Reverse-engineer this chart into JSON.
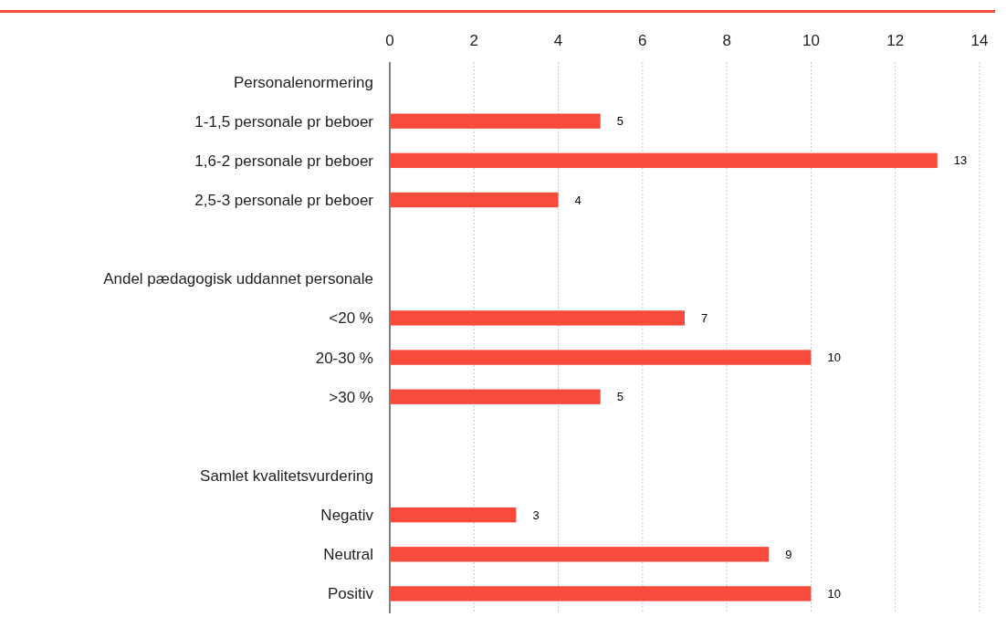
{
  "chart_data": {
    "type": "bar",
    "orientation": "horizontal",
    "categories": [
      "Personalenormering",
      "1-1,5 personale pr beboer",
      "1,6-2 personale pr beboer",
      "2,5-3 personale pr beboer",
      null,
      "Andel pædagogisk uddannet personale",
      "<20 %",
      "20-30 %",
      ">30 %",
      null,
      "Samlet kvalitetsvurdering",
      "Negativ",
      "Neutral",
      "Positiv"
    ],
    "values": [
      null,
      5,
      13,
      4,
      null,
      null,
      7,
      10,
      5,
      null,
      null,
      3,
      9,
      10
    ],
    "color": "#f94b3b",
    "xlim": [
      0,
      14
    ],
    "xticks": [
      0,
      2,
      4,
      6,
      8,
      10,
      12,
      14
    ],
    "grid": "x",
    "data_labels": true
  }
}
